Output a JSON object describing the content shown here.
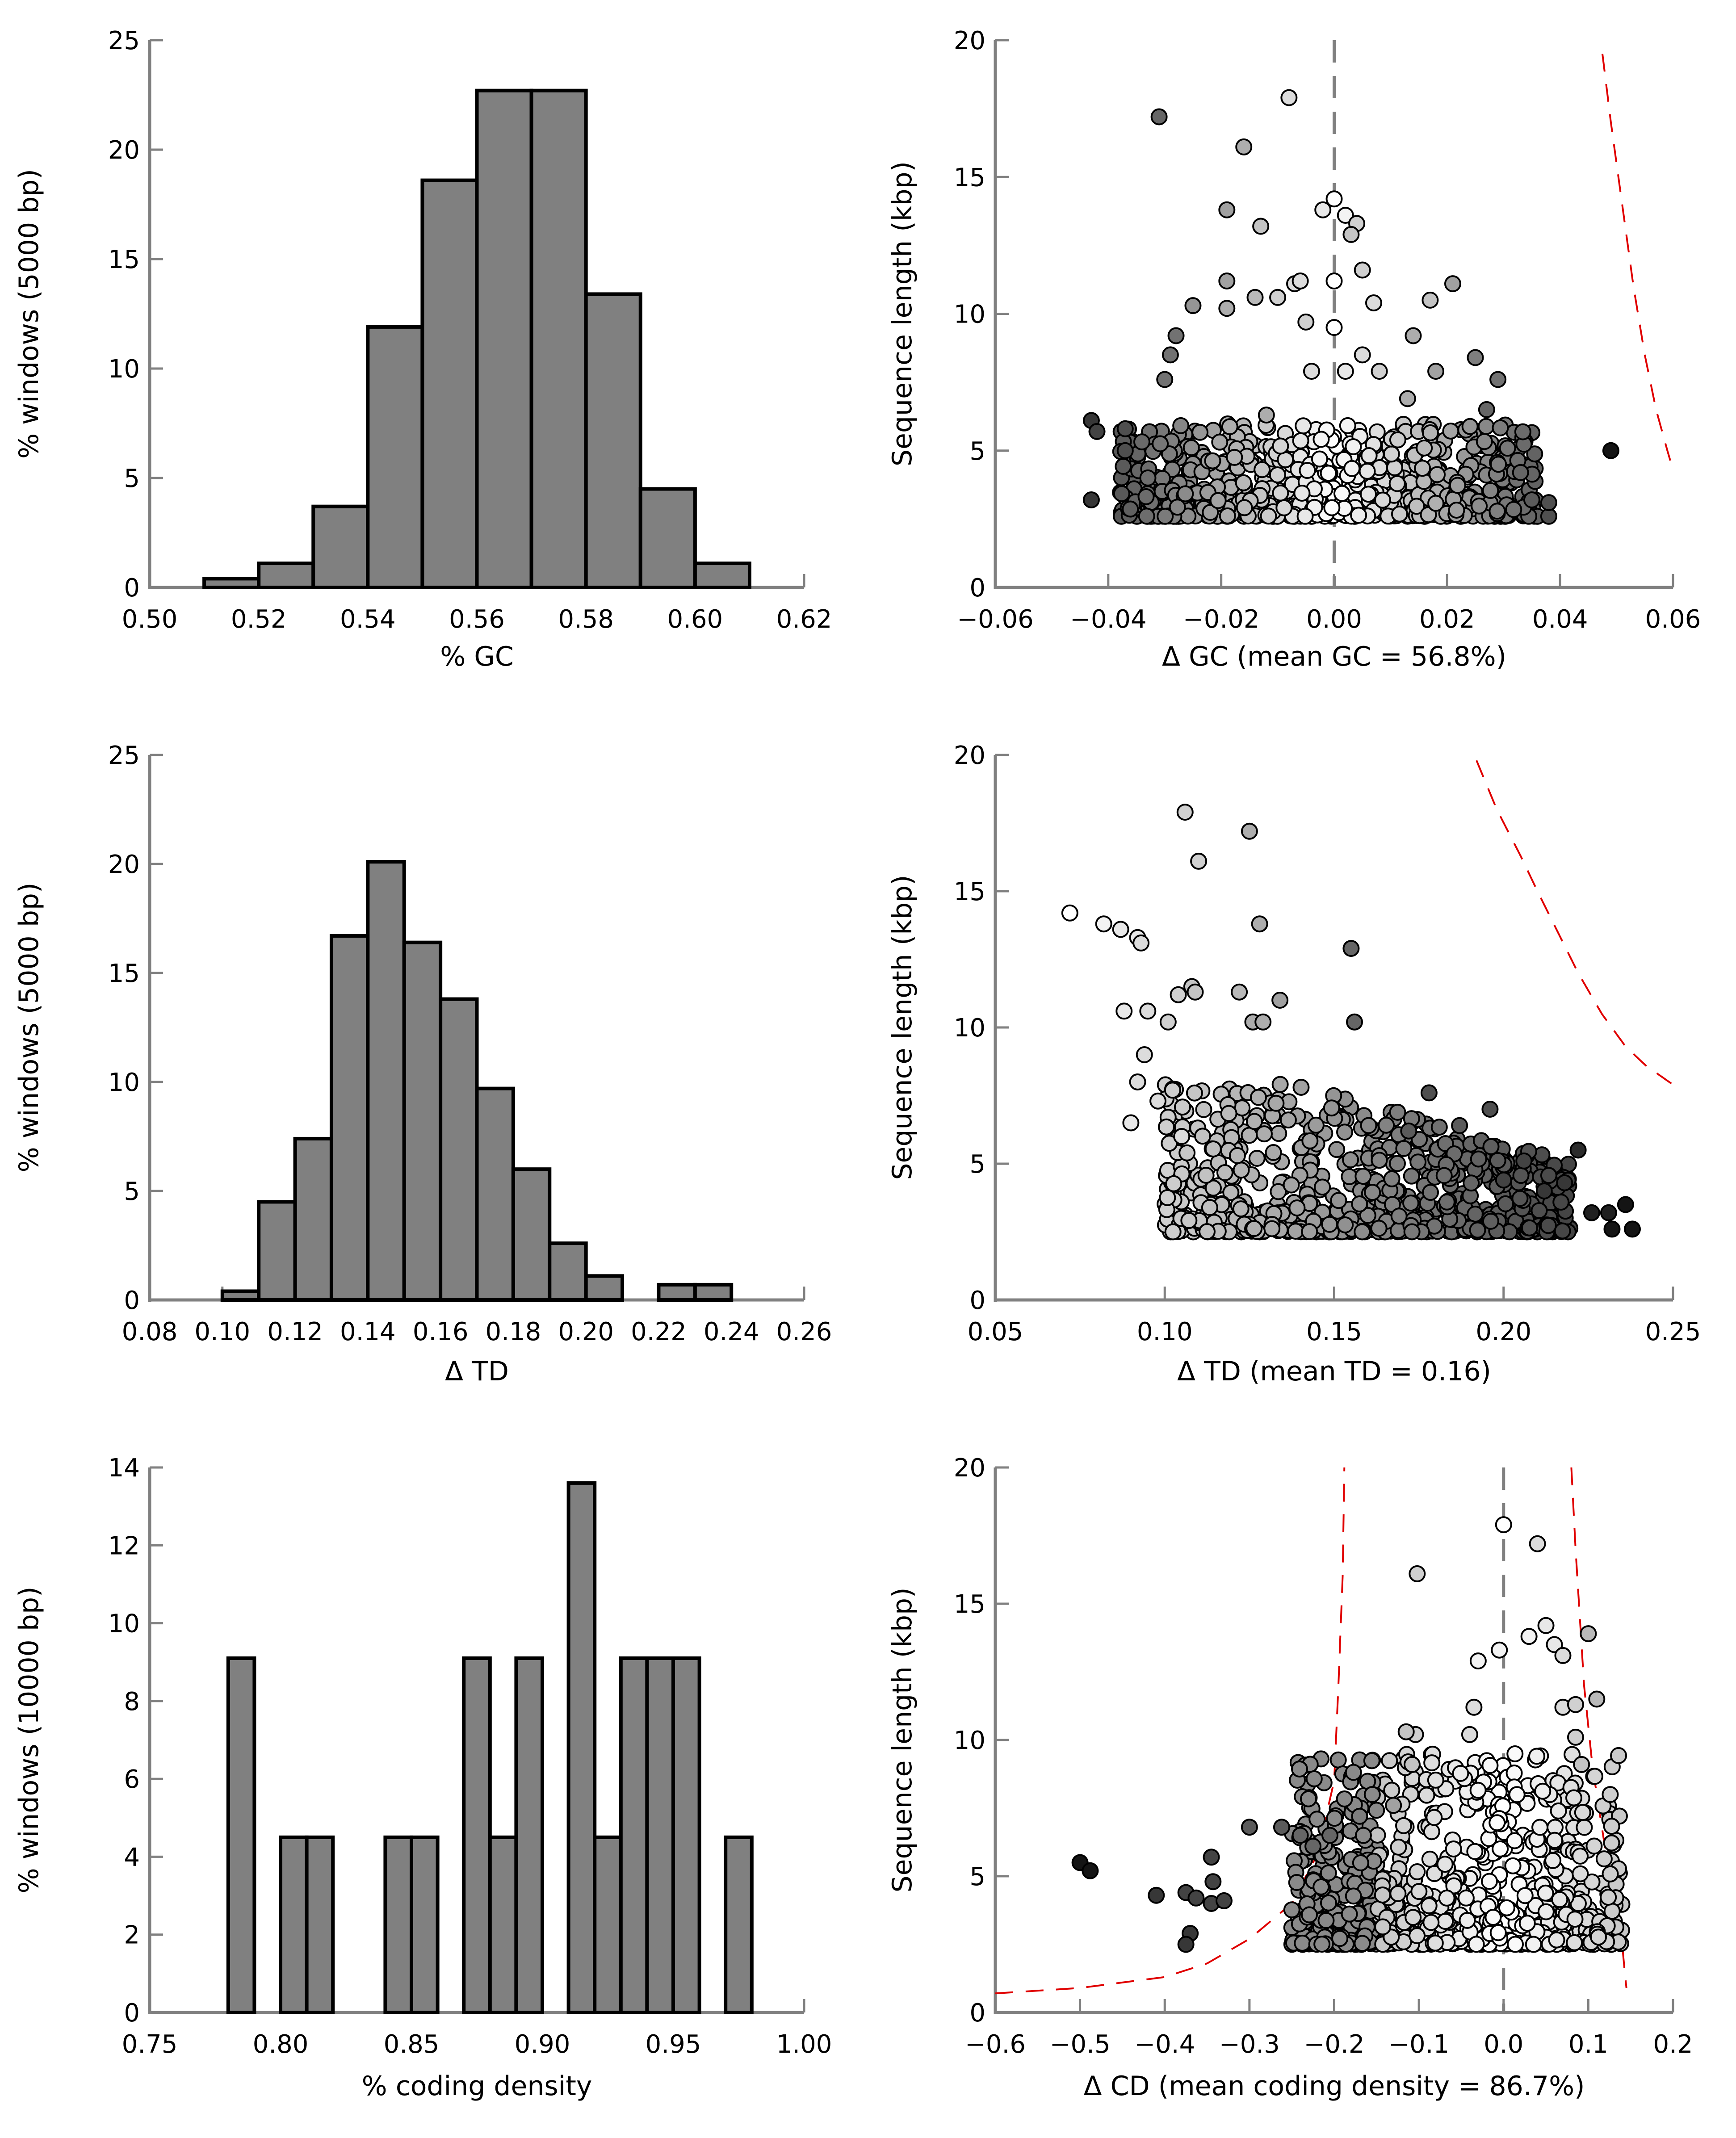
{
  "chart_data": [
    {
      "id": "hist-gc",
      "type": "bar",
      "title": "",
      "xlabel": "% GC",
      "ylabel": "% windows (5000 bp)",
      "xlim": [
        0.5,
        0.62
      ],
      "ylim": [
        0,
        25
      ],
      "xticks": [
        "0.50",
        "0.52",
        "0.54",
        "0.56",
        "0.58",
        "0.60",
        "0.62"
      ],
      "yticks": [
        "0",
        "5",
        "10",
        "15",
        "20",
        "25"
      ],
      "bin_width": 0.01,
      "bin_starts": [
        0.51,
        0.52,
        0.53,
        0.54,
        0.55,
        0.56,
        0.57,
        0.58,
        0.59,
        0.6
      ],
      "values": [
        0.4,
        1.1,
        3.7,
        11.9,
        18.6,
        22.7,
        22.7,
        13.4,
        4.5,
        1.1
      ],
      "bar_color": "#808080"
    },
    {
      "id": "scatter-gc",
      "type": "scatter",
      "xlabel": "Δ GC (mean GC = 56.8%)",
      "ylabel": "Sequence length (kbp)",
      "xlim": [
        -0.06,
        0.06
      ],
      "ylim": [
        0,
        20
      ],
      "xticks": [
        "−0.06",
        "−0.04",
        "−0.02",
        "0.00",
        "0.02",
        "0.04",
        "0.06"
      ],
      "yticks": [
        "0",
        "5",
        "10",
        "15",
        "20"
      ],
      "reference_line_x": 0.0,
      "threshold_curve": [
        [
          0.0475,
          19.5
        ],
        [
          0.049,
          17
        ],
        [
          0.051,
          14
        ],
        [
          0.053,
          11
        ],
        [
          0.055,
          8.5
        ],
        [
          0.057,
          6.5
        ],
        [
          0.059,
          5
        ],
        [
          0.06,
          4.3
        ]
      ],
      "points": [
        [
          -0.031,
          17.2,
          0.35
        ],
        [
          -0.008,
          17.9,
          0.85
        ],
        [
          -0.016,
          16.1,
          0.65
        ],
        [
          0.0,
          14.2,
          1.0
        ],
        [
          -0.002,
          13.8,
          0.9
        ],
        [
          0.002,
          13.6,
          0.95
        ],
        [
          0.004,
          13.3,
          0.8
        ],
        [
          0.003,
          12.9,
          0.75
        ],
        [
          -0.019,
          13.8,
          0.6
        ],
        [
          -0.013,
          13.2,
          0.75
        ],
        [
          -0.019,
          11.2,
          0.6
        ],
        [
          0.005,
          11.6,
          0.8
        ],
        [
          0.0,
          11.2,
          1.0
        ],
        [
          -0.007,
          11.1,
          0.85
        ],
        [
          -0.006,
          11.2,
          0.85
        ],
        [
          0.021,
          11.1,
          0.6
        ],
        [
          -0.025,
          10.3,
          0.55
        ],
        [
          -0.014,
          10.6,
          0.7
        ],
        [
          -0.01,
          10.6,
          0.8
        ],
        [
          0.007,
          10.4,
          0.85
        ],
        [
          0.017,
          10.5,
          0.75
        ],
        [
          -0.005,
          9.7,
          0.8
        ],
        [
          0.0,
          9.5,
          1.0
        ],
        [
          -0.019,
          10.2,
          0.65
        ],
        [
          -0.028,
          9.2,
          0.4
        ],
        [
          -0.029,
          8.5,
          0.4
        ],
        [
          -0.03,
          7.6,
          0.4
        ],
        [
          -0.043,
          6.1,
          0.15
        ],
        [
          -0.042,
          5.7,
          0.2
        ],
        [
          -0.037,
          5.8,
          0.25
        ],
        [
          -0.037,
          5.0,
          0.25
        ],
        [
          -0.043,
          3.2,
          0.15
        ],
        [
          0.049,
          5.0,
          0.0
        ],
        [
          0.038,
          2.6,
          0.25
        ],
        [
          0.038,
          3.1,
          0.25
        ],
        [
          0.035,
          3.2,
          0.3
        ],
        [
          0.033,
          4.2,
          0.35
        ],
        [
          0.027,
          6.5,
          0.35
        ],
        [
          0.029,
          7.6,
          0.4
        ],
        [
          0.025,
          8.4,
          0.45
        ],
        [
          0.014,
          9.2,
          0.65
        ],
        [
          0.005,
          8.5,
          0.85
        ],
        [
          0.002,
          7.9,
          0.9
        ],
        [
          -0.004,
          7.9,
          0.85
        ],
        [
          0.008,
          7.9,
          0.8
        ],
        [
          0.018,
          7.9,
          0.6
        ],
        [
          0.013,
          6.9,
          0.65
        ],
        [
          -0.012,
          6.3,
          0.65
        ]
      ],
      "cluster": {
        "x_range": [
          -0.038,
          0.036
        ],
        "y_range": [
          2.6,
          6.0
        ],
        "count": 700,
        "shade_rule": "white near 0, darker with |x|"
      }
    },
    {
      "id": "hist-td",
      "type": "bar",
      "xlabel": "Δ TD",
      "ylabel": "% windows (5000 bp)",
      "xlim": [
        0.08,
        0.26
      ],
      "ylim": [
        0,
        25
      ],
      "xticks": [
        "0.08",
        "0.10",
        "0.12",
        "0.14",
        "0.16",
        "0.18",
        "0.20",
        "0.22",
        "0.24",
        "0.26"
      ],
      "yticks": [
        "0",
        "5",
        "10",
        "15",
        "20",
        "25"
      ],
      "bin_width": 0.01,
      "bin_starts": [
        0.1,
        0.11,
        0.12,
        0.13,
        0.14,
        0.15,
        0.16,
        0.17,
        0.18,
        0.19,
        0.2,
        0.21,
        0.22,
        0.23
      ],
      "values": [
        0.4,
        4.5,
        7.4,
        16.7,
        20.1,
        16.4,
        13.8,
        9.7,
        6.0,
        2.6,
        1.1,
        0,
        0.7,
        0.7
      ],
      "bar_color": "#808080"
    },
    {
      "id": "scatter-td",
      "type": "scatter",
      "xlabel": "Δ TD (mean TD = 0.16)",
      "ylabel": "Sequence length (kbp)",
      "xlim": [
        0.05,
        0.25
      ],
      "ylim": [
        0,
        20
      ],
      "xticks": [
        "0.05",
        "0.10",
        "0.15",
        "0.20",
        "0.25"
      ],
      "yticks": [
        "0",
        "5",
        "10",
        "15",
        "20"
      ],
      "threshold_curve": [
        [
          0.192,
          19.8
        ],
        [
          0.198,
          18
        ],
        [
          0.205,
          16.3
        ],
        [
          0.21,
          15
        ],
        [
          0.216,
          13.5
        ],
        [
          0.222,
          12
        ],
        [
          0.229,
          10.5
        ],
        [
          0.236,
          9.3
        ],
        [
          0.242,
          8.6
        ],
        [
          0.25,
          7.9
        ]
      ],
      "points": [
        [
          0.072,
          14.2,
          1.0
        ],
        [
          0.082,
          13.8,
          0.95
        ],
        [
          0.087,
          13.6,
          0.9
        ],
        [
          0.092,
          13.3,
          0.9
        ],
        [
          0.093,
          13.1,
          0.85
        ],
        [
          0.106,
          17.9,
          0.8
        ],
        [
          0.11,
          16.1,
          0.8
        ],
        [
          0.125,
          17.2,
          0.65
        ],
        [
          0.128,
          13.8,
          0.65
        ],
        [
          0.155,
          12.9,
          0.35
        ],
        [
          0.104,
          11.2,
          0.8
        ],
        [
          0.108,
          11.5,
          0.75
        ],
        [
          0.109,
          11.3,
          0.75
        ],
        [
          0.122,
          11.3,
          0.7
        ],
        [
          0.134,
          11.0,
          0.6
        ],
        [
          0.088,
          10.6,
          0.9
        ],
        [
          0.095,
          10.6,
          0.85
        ],
        [
          0.101,
          10.2,
          0.8
        ],
        [
          0.126,
          10.2,
          0.65
        ],
        [
          0.129,
          10.2,
          0.65
        ],
        [
          0.156,
          10.2,
          0.35
        ],
        [
          0.094,
          9.0,
          0.85
        ],
        [
          0.092,
          8.0,
          0.85
        ],
        [
          0.098,
          7.3,
          0.85
        ],
        [
          0.09,
          6.5,
          0.9
        ],
        [
          0.105,
          6.0,
          0.85
        ],
        [
          0.178,
          7.6,
          0.25
        ],
        [
          0.196,
          7.0,
          0.25
        ],
        [
          0.172,
          6.2,
          0.3
        ],
        [
          0.187,
          6.4,
          0.3
        ],
        [
          0.206,
          5.1,
          0.2
        ],
        [
          0.222,
          5.5,
          0.1
        ],
        [
          0.231,
          3.2,
          0.05
        ],
        [
          0.236,
          3.5,
          0.0
        ],
        [
          0.232,
          2.6,
          0.0
        ],
        [
          0.238,
          2.6,
          0.0
        ],
        [
          0.226,
          3.2,
          0.05
        ],
        [
          0.218,
          4.3,
          0.15
        ],
        [
          0.212,
          4.0,
          0.15
        ],
        [
          0.2,
          4.4,
          0.2
        ]
      ],
      "cluster": {
        "x_range": [
          0.1,
          0.22
        ],
        "y_range": [
          2.5,
          8.0
        ],
        "count": 750,
        "shade_rule": "light at low x, dark at high x; upper bound decreases with x"
      }
    },
    {
      "id": "hist-cd",
      "type": "bar",
      "xlabel": "% coding density",
      "ylabel": "% windows (10000 bp)",
      "xlim": [
        0.75,
        1.0
      ],
      "ylim": [
        0,
        14
      ],
      "xticks": [
        "0.75",
        "0.80",
        "0.85",
        "0.90",
        "0.95",
        "1.00"
      ],
      "yticks": [
        "0",
        "2",
        "4",
        "6",
        "8",
        "10",
        "12",
        "14"
      ],
      "bin_width": 0.01,
      "bin_starts": [
        0.78,
        0.79,
        0.8,
        0.81,
        0.82,
        0.83,
        0.84,
        0.85,
        0.86,
        0.87,
        0.88,
        0.89,
        0.9,
        0.91,
        0.92,
        0.93,
        0.94,
        0.95,
        0.96,
        0.97
      ],
      "values": [
        9.1,
        0,
        4.5,
        4.5,
        0,
        0,
        4.5,
        4.5,
        0,
        9.1,
        4.5,
        9.1,
        0,
        13.6,
        4.5,
        9.1,
        9.1,
        9.1,
        0,
        4.5
      ],
      "bar_color": "#808080"
    },
    {
      "id": "scatter-cd",
      "type": "scatter",
      "xlabel": "Δ CD (mean coding density = 86.7%)",
      "ylabel": "Sequence length (kbp)",
      "xlim": [
        -0.6,
        0.2
      ],
      "ylim": [
        0,
        20
      ],
      "xticks": [
        "−0.6",
        "−0.5",
        "−0.4",
        "−0.3",
        "−0.2",
        "−0.1",
        "0.0",
        "0.1",
        "0.2"
      ],
      "yticks": [
        "0",
        "5",
        "10",
        "15",
        "20"
      ],
      "reference_line_x": 0.0,
      "threshold_curve_left": [
        [
          -0.6,
          0.7
        ],
        [
          -0.5,
          0.9
        ],
        [
          -0.4,
          1.3
        ],
        [
          -0.35,
          1.8
        ],
        [
          -0.3,
          2.7
        ],
        [
          -0.25,
          4.0
        ],
        [
          -0.22,
          5.8
        ],
        [
          -0.2,
          8.5
        ],
        [
          -0.195,
          12
        ],
        [
          -0.19,
          16
        ],
        [
          -0.188,
          20
        ]
      ],
      "threshold_curve_right": [
        [
          0.08,
          20
        ],
        [
          0.085,
          17
        ],
        [
          0.095,
          12
        ],
        [
          0.105,
          9
        ],
        [
          0.12,
          6
        ],
        [
          0.13,
          4
        ],
        [
          0.14,
          2.5
        ],
        [
          0.143,
          1.5
        ],
        [
          0.145,
          0.9
        ]
      ],
      "points": [
        [
          -0.5,
          5.5,
          0.0
        ],
        [
          -0.488,
          5.2,
          0.0
        ],
        [
          -0.41,
          4.3,
          0.15
        ],
        [
          -0.375,
          4.4,
          0.2
        ],
        [
          -0.363,
          4.2,
          0.2
        ],
        [
          -0.345,
          5.7,
          0.2
        ],
        [
          -0.343,
          4.8,
          0.2
        ],
        [
          -0.345,
          4.0,
          0.2
        ],
        [
          -0.33,
          4.1,
          0.2
        ],
        [
          -0.37,
          2.9,
          0.15
        ],
        [
          -0.375,
          2.5,
          0.15
        ],
        [
          -0.3,
          6.8,
          0.3
        ],
        [
          -0.262,
          6.8,
          0.3
        ],
        [
          -0.24,
          6.5,
          0.35
        ],
        [
          -0.225,
          6.1,
          0.35
        ],
        [
          -0.205,
          6.5,
          0.35
        ],
        [
          -0.17,
          7.2,
          0.45
        ],
        [
          -0.155,
          8.0,
          0.5
        ],
        [
          -0.13,
          7.6,
          0.6
        ],
        [
          -0.102,
          16.1,
          0.8
        ],
        [
          -0.104,
          10.2,
          0.8
        ],
        [
          0.0,
          17.9,
          1.0
        ],
        [
          0.04,
          17.2,
          0.85
        ],
        [
          0.05,
          14.2,
          0.9
        ],
        [
          0.03,
          13.8,
          0.95
        ],
        [
          0.06,
          13.5,
          0.9
        ],
        [
          0.07,
          13.1,
          0.85
        ],
        [
          0.1,
          13.9,
          0.7
        ],
        [
          -0.03,
          12.9,
          0.95
        ],
        [
          -0.005,
          13.3,
          0.95
        ],
        [
          -0.035,
          11.2,
          0.85
        ],
        [
          0.11,
          11.5,
          0.7
        ],
        [
          0.07,
          11.2,
          0.85
        ],
        [
          0.085,
          11.3,
          0.8
        ],
        [
          -0.04,
          10.2,
          0.85
        ],
        [
          0.085,
          10.1,
          0.8
        ],
        [
          -0.115,
          10.3,
          0.75
        ],
        [
          -0.108,
          9.1,
          0.75
        ],
        [
          0.092,
          9.1,
          0.75
        ]
      ],
      "cluster": {
        "x_range": [
          -0.25,
          0.14
        ],
        "y_range": [
          2.5,
          9.5
        ],
        "count": 800,
        "shade_rule": "white near 0, grey at extremes"
      }
    }
  ]
}
